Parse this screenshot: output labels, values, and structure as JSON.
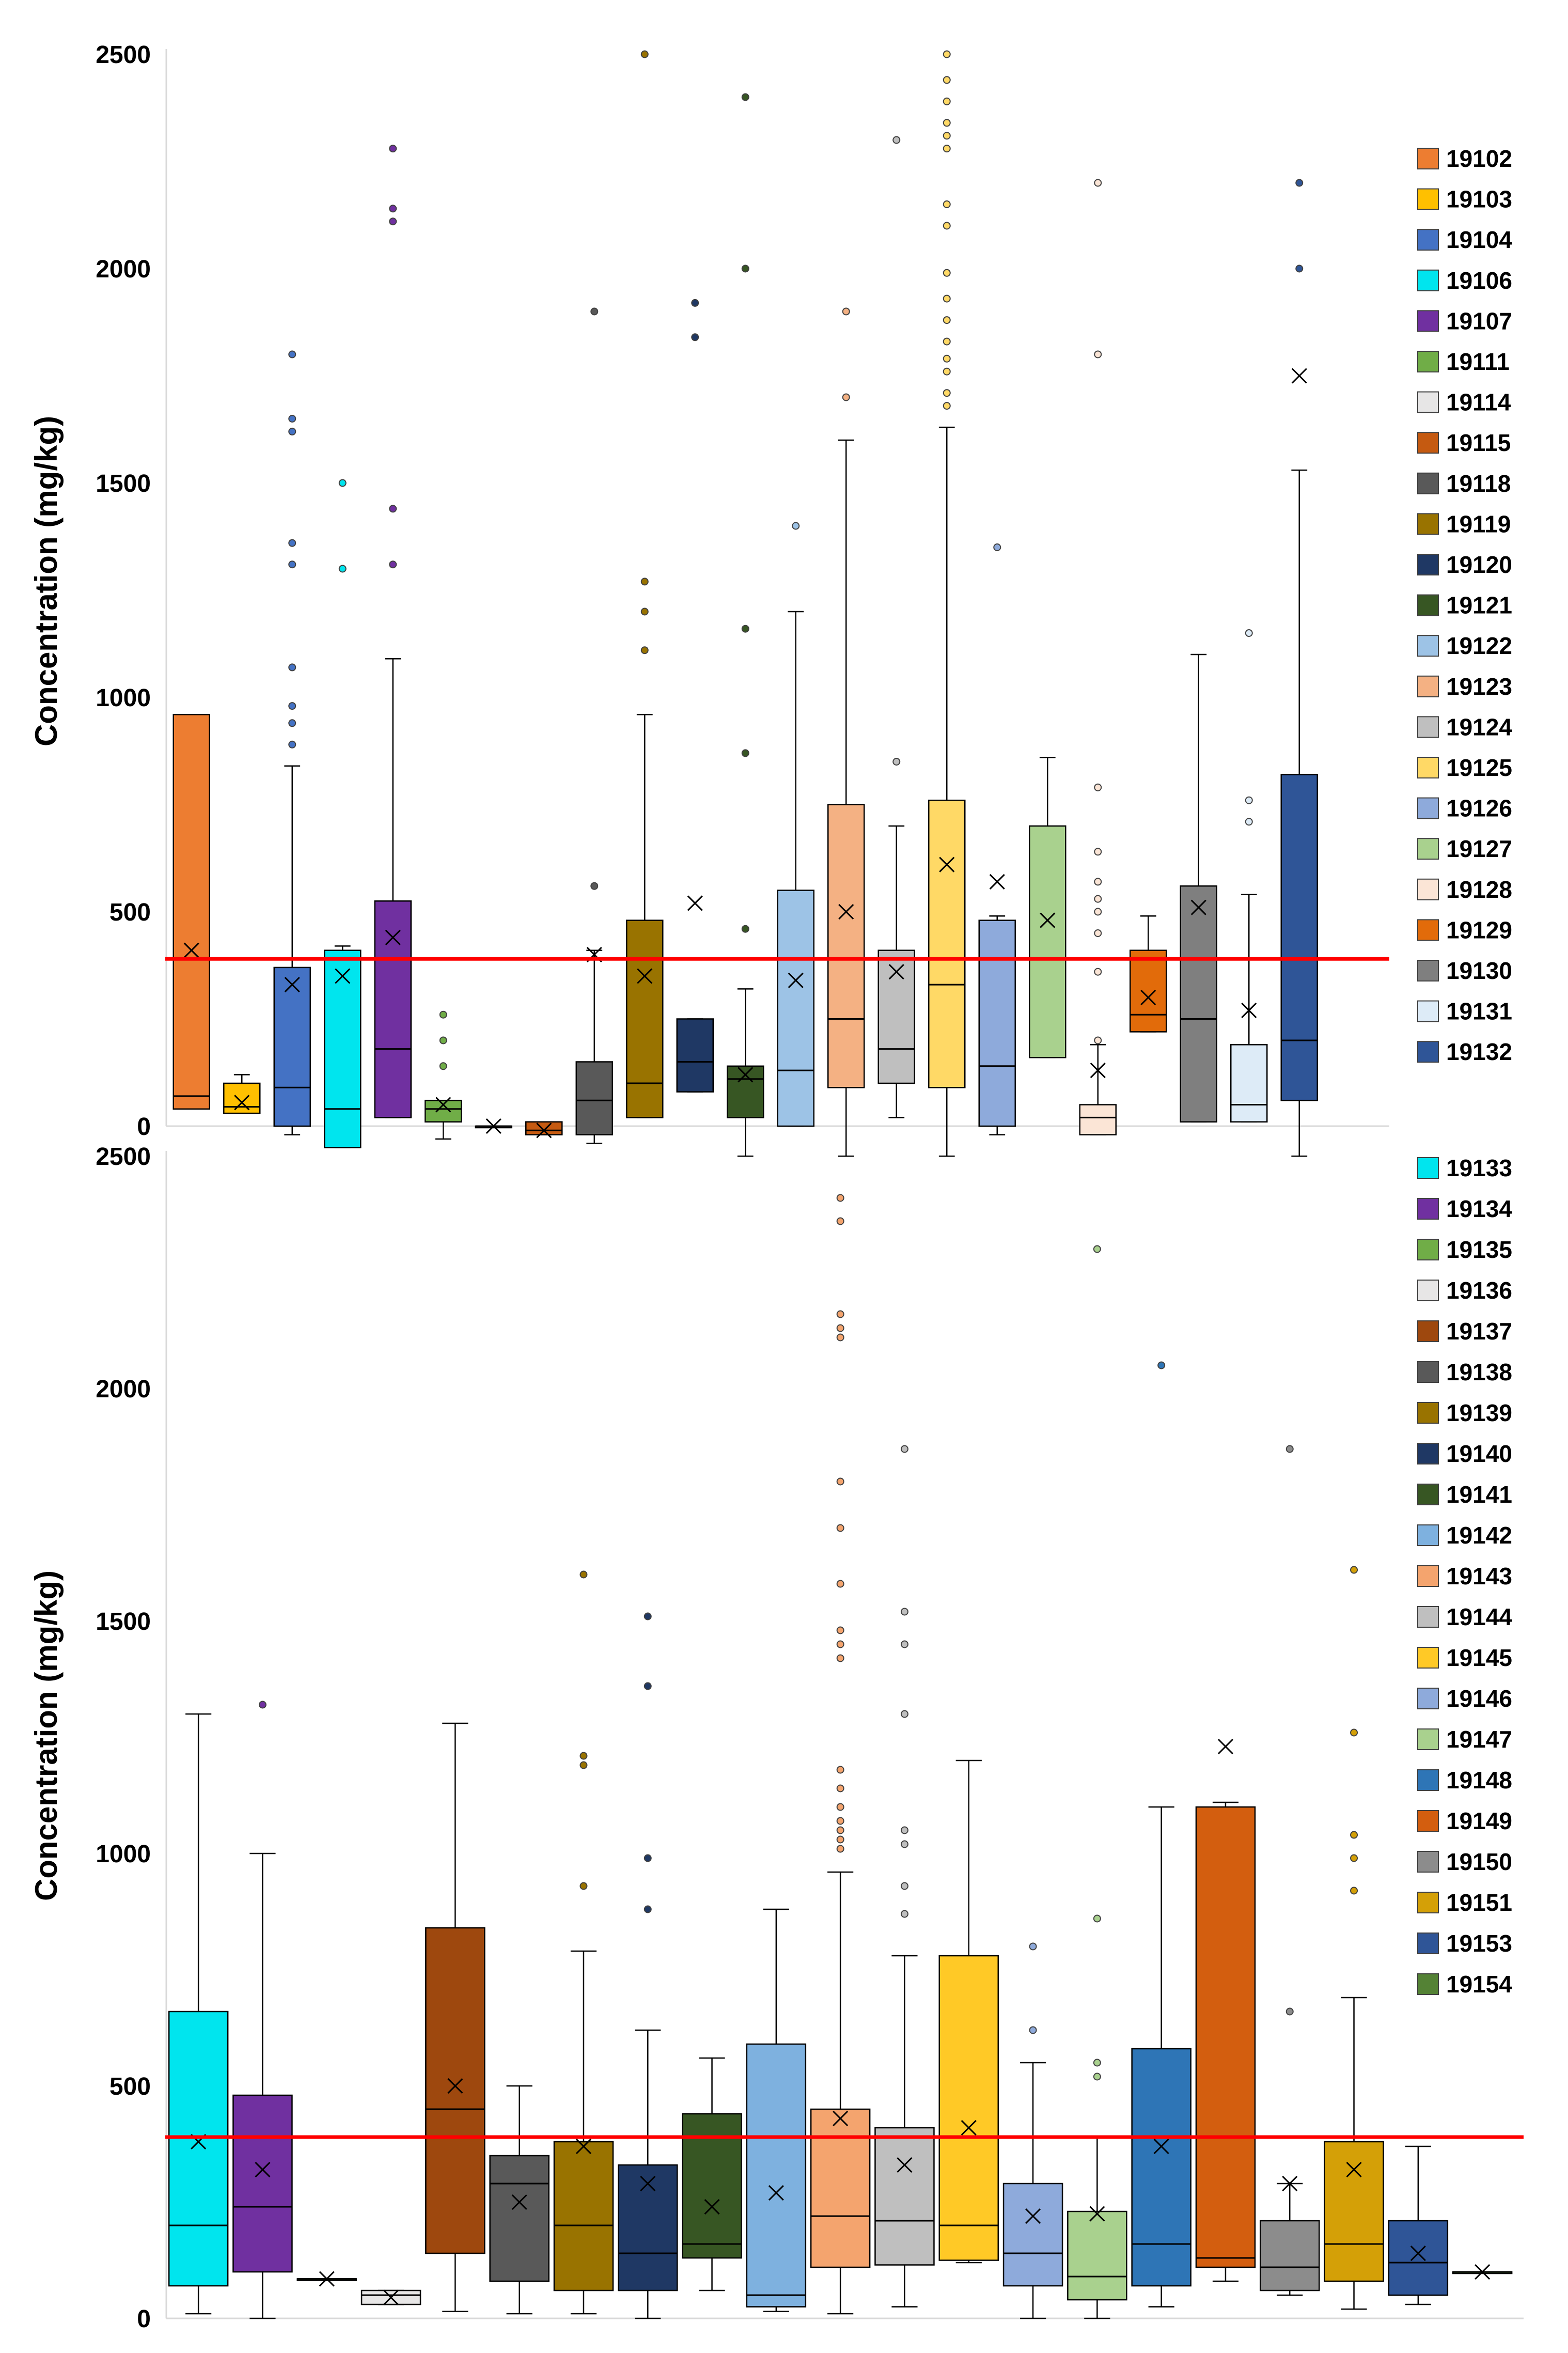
{
  "chart_data": [
    {
      "type": "box",
      "title": "",
      "xlabel": "",
      "ylabel": "Concentration (mg/kg)",
      "ylim": [
        0,
        2500
      ],
      "yticks": [
        0,
        500,
        1000,
        1500,
        2000,
        2500
      ],
      "grid": false,
      "reference_line": {
        "value": 390,
        "color": "#ff0000"
      },
      "legend_position": "right",
      "series": [
        {
          "name": "19102",
          "color": "#ed7d31",
          "min": 40,
          "q1": 40,
          "median": 70,
          "q3": 960,
          "max": 960,
          "mean": 410,
          "outliers": []
        },
        {
          "name": "19103",
          "color": "#ffc000",
          "min": 30,
          "q1": 30,
          "median": 45,
          "q3": 100,
          "max": 120,
          "mean": 55,
          "outliers": []
        },
        {
          "name": "19104",
          "color": "#4472c4",
          "min": -20,
          "q1": 0,
          "median": 90,
          "q3": 370,
          "max": 840,
          "mean": 330,
          "outliers": [
            890,
            940,
            980,
            1070,
            1310,
            1360,
            1620,
            1650,
            1800
          ]
        },
        {
          "name": "19106",
          "color": "#00e5ee",
          "min": -50,
          "q1": -50,
          "median": 40,
          "q3": 410,
          "max": 420,
          "mean": 350,
          "outliers": [
            1300,
            1500
          ]
        },
        {
          "name": "19107",
          "color": "#7030a0",
          "min": 20,
          "q1": 20,
          "median": 180,
          "q3": 525,
          "max": 1090,
          "mean": 440,
          "outliers": [
            1310,
            1440,
            2110,
            2140,
            2280
          ]
        },
        {
          "name": "19111",
          "color": "#70ad47",
          "min": -30,
          "q1": 10,
          "median": 40,
          "q3": 60,
          "max": 60,
          "mean": 50,
          "outliers": [
            140,
            200,
            260
          ]
        },
        {
          "name": "19114",
          "color": "#e7e6e6",
          "min": 0,
          "q1": 0,
          "median": 0,
          "q3": 0,
          "max": 0,
          "mean": 0,
          "outliers": []
        },
        {
          "name": "19115",
          "color": "#c55a11",
          "min": -20,
          "q1": -20,
          "median": -10,
          "q3": 10,
          "max": 10,
          "mean": -10,
          "outliers": []
        },
        {
          "name": "19118",
          "color": "#595959",
          "min": -40,
          "q1": -20,
          "median": 60,
          "q3": 150,
          "max": 410,
          "mean": 400,
          "outliers": [
            560,
            1900
          ]
        },
        {
          "name": "19119",
          "color": "#997300",
          "min": 20,
          "q1": 20,
          "median": 100,
          "q3": 480,
          "max": 960,
          "mean": 350,
          "outliers": [
            1110,
            1200,
            1270,
            2500
          ]
        },
        {
          "name": "19120",
          "color": "#1f3864",
          "min": 80,
          "q1": 80,
          "median": 150,
          "q3": 250,
          "max": 250,
          "mean": 520,
          "outliers": [
            1840,
            1920
          ]
        },
        {
          "name": "19121",
          "color": "#375623",
          "min": -70,
          "q1": 20,
          "median": 110,
          "q3": 140,
          "max": 320,
          "mean": 120,
          "outliers": [
            460,
            870,
            1160,
            2000,
            2400
          ]
        },
        {
          "name": "19122",
          "color": "#9dc3e6",
          "min": 0,
          "q1": 0,
          "median": 130,
          "q3": 550,
          "max": 1200,
          "mean": 340,
          "outliers": [
            1400
          ]
        },
        {
          "name": "19123",
          "color": "#f4b183",
          "min": -70,
          "q1": 90,
          "median": 250,
          "q3": 750,
          "max": 1600,
          "mean": 500,
          "outliers": [
            1700,
            1900
          ]
        },
        {
          "name": "19124",
          "color": "#bfbfbf",
          "min": 20,
          "q1": 100,
          "median": 180,
          "q3": 410,
          "max": 700,
          "mean": 360,
          "outliers": [
            850,
            2300
          ]
        },
        {
          "name": "19125",
          "color": "#ffd966",
          "min": -70,
          "q1": 90,
          "median": 330,
          "q3": 760,
          "max": 1630,
          "mean": 610,
          "outliers": [
            1680,
            1710,
            1760,
            1790,
            1830,
            1880,
            1930,
            1990,
            2100,
            2150,
            2280,
            2310,
            2340,
            2390,
            2440,
            2500
          ]
        },
        {
          "name": "19126",
          "color": "#8eaadb",
          "min": -20,
          "q1": 0,
          "median": 140,
          "q3": 480,
          "max": 490,
          "mean": 570,
          "outliers": [
            1350
          ]
        },
        {
          "name": "19127",
          "color": "#a9d18e",
          "min": 160,
          "q1": 160,
          "median": 390,
          "q3": 700,
          "max": 860,
          "mean": 480,
          "outliers": []
        },
        {
          "name": "19128",
          "color": "#fbe5d6",
          "min": -20,
          "q1": -20,
          "median": 20,
          "q3": 50,
          "max": 190,
          "mean": 130,
          "outliers": [
            200,
            360,
            450,
            500,
            530,
            570,
            640,
            790,
            1800,
            2200
          ]
        },
        {
          "name": "19129",
          "color": "#e26b0a",
          "min": 220,
          "q1": 220,
          "median": 260,
          "q3": 410,
          "max": 490,
          "mean": 300,
          "outliers": []
        },
        {
          "name": "19130",
          "color": "#7f7f7f",
          "min": 10,
          "q1": 10,
          "median": 250,
          "q3": 560,
          "max": 1100,
          "mean": 510,
          "outliers": []
        },
        {
          "name": "19131",
          "color": "#ddebf7",
          "min": 10,
          "q1": 10,
          "median": 50,
          "q3": 190,
          "max": 540,
          "mean": 270,
          "outliers": [
            710,
            760,
            1150
          ]
        },
        {
          "name": "19132",
          "color": "#2f5597",
          "min": -70,
          "q1": 60,
          "median": 200,
          "q3": 820,
          "max": 1530,
          "mean": 1750,
          "outliers": [
            2000,
            2200
          ]
        }
      ]
    },
    {
      "type": "box",
      "title": "",
      "xlabel": "",
      "ylabel": "Concentration (mg/kg)",
      "ylim": [
        0,
        2500
      ],
      "yticks": [
        0,
        500,
        1000,
        1500,
        2000,
        2500
      ],
      "grid": false,
      "reference_line": {
        "value": 390,
        "color": "#ff0000"
      },
      "legend_position": "right",
      "series": [
        {
          "name": "19133",
          "color": "#00e5ee",
          "min": 10,
          "q1": 70,
          "median": 200,
          "q3": 660,
          "max": 1300,
          "mean": 380,
          "outliers": []
        },
        {
          "name": "19134",
          "color": "#7030a0",
          "min": 0,
          "q1": 100,
          "median": 240,
          "q3": 480,
          "max": 1000,
          "mean": 320,
          "outliers": [
            1320
          ]
        },
        {
          "name": "19135",
          "color": "#70ad47",
          "min": 85,
          "q1": 85,
          "median": 85,
          "q3": 85,
          "max": 85,
          "mean": 85,
          "outliers": []
        },
        {
          "name": "19136",
          "color": "#e7e6e6",
          "min": 30,
          "q1": 30,
          "median": 50,
          "q3": 60,
          "max": 60,
          "mean": 45,
          "outliers": []
        },
        {
          "name": "19137",
          "color": "#9e480e",
          "min": 15,
          "q1": 140,
          "median": 450,
          "q3": 840,
          "max": 1280,
          "mean": 500,
          "outliers": []
        },
        {
          "name": "19138",
          "color": "#595959",
          "min": 10,
          "q1": 80,
          "median": 290,
          "q3": 350,
          "max": 500,
          "mean": 250,
          "outliers": []
        },
        {
          "name": "19139",
          "color": "#997300",
          "min": 10,
          "q1": 60,
          "median": 200,
          "q3": 380,
          "max": 790,
          "mean": 370,
          "outliers": [
            930,
            1190,
            1210,
            1600
          ]
        },
        {
          "name": "19140",
          "color": "#1f3864",
          "min": 0,
          "q1": 60,
          "median": 140,
          "q3": 330,
          "max": 620,
          "mean": 290,
          "outliers": [
            880,
            990,
            1360,
            1510
          ]
        },
        {
          "name": "19141",
          "color": "#375623",
          "min": 60,
          "q1": 130,
          "median": 160,
          "q3": 440,
          "max": 560,
          "mean": 240,
          "outliers": []
        },
        {
          "name": "19142",
          "color": "#7eb1df",
          "min": 15,
          "q1": 25,
          "median": 50,
          "q3": 590,
          "max": 880,
          "mean": 270,
          "outliers": []
        },
        {
          "name": "19143",
          "color": "#f4a46e",
          "min": 10,
          "q1": 110,
          "median": 220,
          "q3": 450,
          "max": 960,
          "mean": 430,
          "outliers": [
            1010,
            1030,
            1050,
            1070,
            1100,
            1140,
            1180,
            1420,
            1450,
            1480,
            1580,
            1700,
            1800,
            2110,
            2130,
            2160,
            2360,
            2410
          ]
        },
        {
          "name": "19144",
          "color": "#bfbfbf",
          "min": 25,
          "q1": 115,
          "median": 210,
          "q3": 410,
          "max": 780,
          "mean": 330,
          "outliers": [
            870,
            930,
            1020,
            1050,
            1300,
            1450,
            1520,
            1870
          ]
        },
        {
          "name": "19145",
          "color": "#ffc926",
          "min": 120,
          "q1": 125,
          "median": 200,
          "q3": 780,
          "max": 1200,
          "mean": 410,
          "outliers": []
        },
        {
          "name": "19146",
          "color": "#8eaadb",
          "min": 0,
          "q1": 70,
          "median": 140,
          "q3": 290,
          "max": 550,
          "mean": 220,
          "outliers": [
            620,
            800
          ]
        },
        {
          "name": "19147",
          "color": "#a9d18e",
          "min": 0,
          "q1": 40,
          "median": 90,
          "q3": 230,
          "max": 390,
          "mean": 225,
          "outliers": [
            520,
            550,
            860,
            2300
          ]
        },
        {
          "name": "19148",
          "color": "#2e75b6",
          "min": 25,
          "q1": 70,
          "median": 160,
          "q3": 580,
          "max": 1100,
          "mean": 370,
          "outliers": [
            2050
          ]
        },
        {
          "name": "19149",
          "color": "#d35e0f",
          "min": 80,
          "q1": 110,
          "median": 130,
          "q3": 1100,
          "max": 1110,
          "mean": 1230,
          "outliers": []
        },
        {
          "name": "19150",
          "color": "#8c8c8c",
          "min": 50,
          "q1": 60,
          "median": 110,
          "q3": 210,
          "max": 290,
          "mean": 290,
          "outliers": [
            660,
            1870
          ]
        },
        {
          "name": "19151",
          "color": "#d4a007",
          "min": 20,
          "q1": 80,
          "median": 160,
          "q3": 380,
          "max": 690,
          "mean": 320,
          "outliers": [
            920,
            990,
            1040,
            1260,
            1610
          ]
        },
        {
          "name": "19153",
          "color": "#2f5597",
          "min": 30,
          "q1": 50,
          "median": 120,
          "q3": 210,
          "max": 370,
          "mean": 140,
          "outliers": []
        },
        {
          "name": "19154",
          "color": "#548235",
          "min": 100,
          "q1": 100,
          "median": 100,
          "q3": 100,
          "max": 100,
          "mean": 100,
          "outliers": []
        }
      ]
    }
  ]
}
